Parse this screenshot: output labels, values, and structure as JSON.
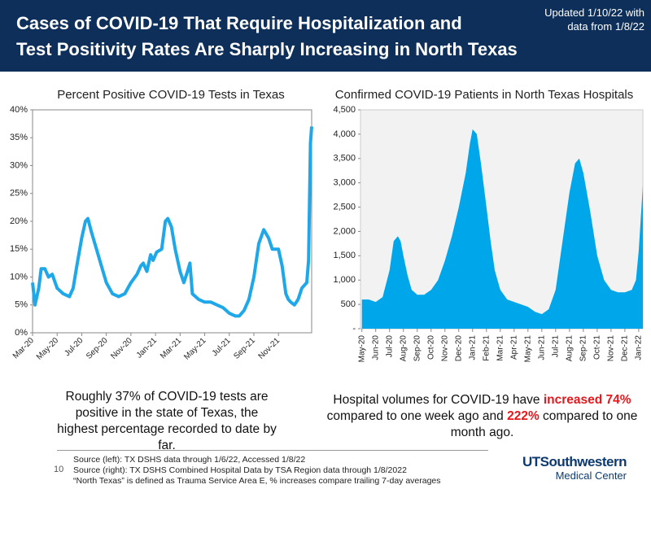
{
  "header": {
    "title": [
      "Cases of COVID-19 That Require Hospitalization and",
      "Test Positivity Rates Are Sharply Increasing in North Texas"
    ],
    "updated": [
      "Updated 1/10/22 with",
      "data from 1/8/22"
    ]
  },
  "chart_data": [
    {
      "type": "line",
      "title": "Percent Positive COVID-19 Tests in Texas",
      "color": "#1ea8ea",
      "x": [
        0,
        0.2,
        0.5,
        0.7,
        1.0,
        1.3,
        1.6,
        2.0,
        2.5,
        3.0,
        3.3,
        3.6,
        4.0,
        4.3,
        4.5,
        4.8,
        5.2,
        5.6,
        6.0,
        6.5,
        7.0,
        7.5,
        8.0,
        8.5,
        8.8,
        9.0,
        9.3,
        9.6,
        9.8,
        10.1,
        10.5,
        10.8,
        11.0,
        11.3,
        11.6,
        12.0,
        12.3,
        12.6,
        12.8,
        13.0,
        13.5,
        14.0,
        14.5,
        15.0,
        15.5,
        16.0,
        16.5,
        16.8,
        17.2,
        17.6,
        18.0,
        18.4,
        18.8,
        19.2,
        19.5,
        20.0,
        20.3,
        20.6,
        20.8,
        21.0,
        21.3,
        21.6,
        21.9,
        22.1,
        22.3,
        22.45,
        22.6,
        22.7
      ],
      "values": [
        9,
        5,
        8,
        11.5,
        11.5,
        10,
        10.5,
        8,
        7,
        6.5,
        8,
        12,
        17,
        20,
        20.5,
        18,
        15,
        12,
        9,
        7,
        6.5,
        7,
        9,
        10.5,
        12,
        12.5,
        11,
        14,
        13,
        14.5,
        15,
        20,
        20.5,
        19,
        15,
        11,
        9,
        11,
        12.5,
        7,
        6,
        5.5,
        5.5,
        5,
        4.5,
        3.5,
        3,
        3,
        4,
        6,
        10,
        16,
        18.5,
        17,
        15,
        15,
        12,
        7,
        6,
        5.5,
        5,
        6,
        8,
        8.5,
        9,
        13,
        34,
        37
      ],
      "xlim": [
        0,
        22.7
      ],
      "xticks": [
        {
          "value": 0,
          "label": "Mar-20"
        },
        {
          "value": 2,
          "label": "May-20"
        },
        {
          "value": 4,
          "label": "Jul-20"
        },
        {
          "value": 6,
          "label": "Sep-20"
        },
        {
          "value": 8,
          "label": "Nov-20"
        },
        {
          "value": 10,
          "label": "Jan-21"
        },
        {
          "value": 12,
          "label": "Mar-21"
        },
        {
          "value": 14,
          "label": "May-21"
        },
        {
          "value": 16,
          "label": "Jul-21"
        },
        {
          "value": 18,
          "label": "Sep-21"
        },
        {
          "value": 20,
          "label": "Nov-21"
        }
      ],
      "ylim": [
        0,
        40
      ],
      "yticks": [
        {
          "value": 0,
          "label": "0%"
        },
        {
          "value": 5,
          "label": "5%"
        },
        {
          "value": 10,
          "label": "10%"
        },
        {
          "value": 15,
          "label": "15%"
        },
        {
          "value": 20,
          "label": "20%"
        },
        {
          "value": 25,
          "label": "25%"
        },
        {
          "value": 30,
          "label": "30%"
        },
        {
          "value": 35,
          "label": "35%"
        },
        {
          "value": 40,
          "label": "40%"
        }
      ]
    },
    {
      "type": "area",
      "title": "Confirmed COVID-19 Patients in North Texas Hospitals",
      "color": "#00a6ea",
      "x": [
        0,
        0.5,
        1.0,
        1.5,
        2.0,
        2.3,
        2.6,
        2.8,
        3.0,
        3.3,
        3.6,
        4.0,
        4.5,
        5.0,
        5.5,
        6.0,
        6.5,
        7.0,
        7.5,
        7.8,
        8.0,
        8.3,
        8.6,
        9.0,
        9.3,
        9.6,
        10.0,
        10.5,
        11.0,
        11.5,
        12.0,
        12.5,
        13.0,
        13.5,
        14.0,
        14.5,
        15.0,
        15.4,
        15.7,
        16.0,
        16.5,
        17.0,
        17.5,
        18.0,
        18.5,
        19.0,
        19.5,
        19.8,
        20.0,
        20.3
      ],
      "values": [
        600,
        600,
        550,
        650,
        1200,
        1800,
        1900,
        1800,
        1500,
        1100,
        800,
        700,
        700,
        800,
        1000,
        1400,
        1900,
        2500,
        3200,
        3800,
        4100,
        4000,
        3400,
        2500,
        1800,
        1200,
        800,
        600,
        550,
        500,
        450,
        350,
        300,
        400,
        800,
        1800,
        2800,
        3400,
        3500,
        3200,
        2400,
        1500,
        1000,
        800,
        750,
        750,
        800,
        1000,
        1600,
        2950
      ],
      "xlim": [
        -0.1,
        20.3
      ],
      "xticks": [
        {
          "value": 0,
          "label": "May-20"
        },
        {
          "value": 1,
          "label": "Jun-20"
        },
        {
          "value": 2,
          "label": "Jul-20"
        },
        {
          "value": 3,
          "label": "Aug-20"
        },
        {
          "value": 4,
          "label": "Sep-20"
        },
        {
          "value": 5,
          "label": "Oct-20"
        },
        {
          "value": 6,
          "label": "Nov-20"
        },
        {
          "value": 7,
          "label": "Dec-20"
        },
        {
          "value": 8,
          "label": "Jan-21"
        },
        {
          "value": 9,
          "label": "Feb-21"
        },
        {
          "value": 10,
          "label": "Mar-21"
        },
        {
          "value": 11,
          "label": "Apr-21"
        },
        {
          "value": 12,
          "label": "May-21"
        },
        {
          "value": 13,
          "label": "Jun-21"
        },
        {
          "value": 14,
          "label": "Jul-21"
        },
        {
          "value": 15,
          "label": "Aug-21"
        },
        {
          "value": 16,
          "label": "Sep-21"
        },
        {
          "value": 17,
          "label": "Oct-21"
        },
        {
          "value": 18,
          "label": "Nov-21"
        },
        {
          "value": 19,
          "label": "Dec-21"
        },
        {
          "value": 20,
          "label": "Jan-22"
        }
      ],
      "ylim": [
        0,
        4500
      ],
      "yticks": [
        {
          "value": 0,
          "label": "-"
        },
        {
          "value": 500,
          "label": "500"
        },
        {
          "value": 1000,
          "label": "1,000"
        },
        {
          "value": 1500,
          "label": "1,500"
        },
        {
          "value": 2000,
          "label": "2,000"
        },
        {
          "value": 2500,
          "label": "2,500"
        },
        {
          "value": 3000,
          "label": "3,000"
        },
        {
          "value": 3500,
          "label": "3,500"
        },
        {
          "value": 4000,
          "label": "4,000"
        },
        {
          "value": 4500,
          "label": "4,500"
        }
      ]
    }
  ],
  "captions": {
    "left": "Roughly 37% of COVID-19 tests are positive in the state of Texas, the highest percentage recorded to date by far.",
    "right": [
      "Hospital volumes for COVID-19 have ",
      "increased 74%",
      " compared to one week ago and ",
      "222%",
      " compared to one month ago."
    ]
  },
  "footer": {
    "page": "10",
    "sources": [
      "Source (left): TX DSHS data through 1/6/22, Accessed 1/8/22",
      "Source (right): TX DSHS Combined Hospital Data by TSA Region data through 1/8/2022",
      "“North Texas” is defined as Trauma Service Area E, % increases compare trailing 7-day averages"
    ],
    "logo": [
      "UTSouthwestern",
      "Medical Center"
    ]
  }
}
